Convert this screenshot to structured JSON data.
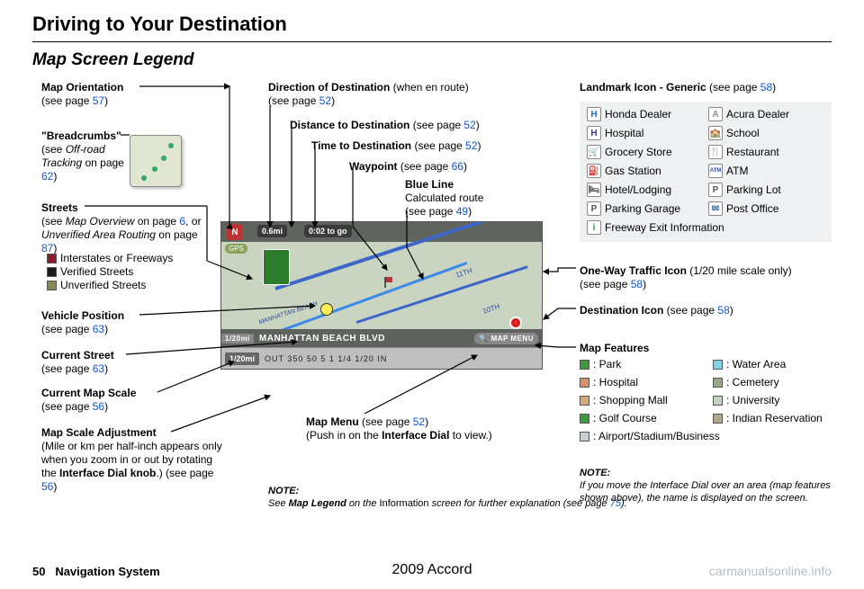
{
  "page": {
    "title": "Driving to Your Destination",
    "section": "Map Screen Legend",
    "page_number": "50",
    "system_label": "Navigation System",
    "vehicle": "2009  Accord",
    "watermark": "carmanualsonline.info"
  },
  "labels": {
    "map_orientation": {
      "title": "Map Orientation",
      "sub": "(see page ",
      "page": "57",
      "tail": ")"
    },
    "breadcrumbs": {
      "title": "\"Breadcrumbs\"",
      "sub1": "(see ",
      "em": "Off-road Tracking",
      "sub2": " on page ",
      "page": "62",
      "tail": ")"
    },
    "streets": {
      "title": "Streets",
      "sub1": "(see ",
      "em1": "Map Overview",
      "sub2": " on page ",
      "p1": "6",
      "sub3": ", or ",
      "em2": "Unverified Area Routing",
      "sub4": " on page ",
      "p2": "87",
      "tail": ")"
    },
    "streets_swatches": [
      {
        "color": "#8a1f2b",
        "label": "Interstates or Freeways"
      },
      {
        "color": "#1b1b1b",
        "label": "Verified Streets"
      },
      {
        "color": "#8a8554",
        "label": "Unverified Streets"
      }
    ],
    "vehicle_position": {
      "title": "Vehicle Position",
      "sub": "(see page ",
      "page": "63",
      "tail": ")"
    },
    "current_street": {
      "title": "Current Street",
      "sub": "(see page ",
      "page": "63",
      "tail": ")"
    },
    "current_scale": {
      "title": "Current Map Scale",
      "sub": "(see page ",
      "page": "56",
      "tail": ")"
    },
    "scale_adj": {
      "title": "Map Scale Adjustment",
      "body": "(Mile or km per half-inch appears only when you zoom in or out by rotating the ",
      "b": "Interface Dial knob",
      "body2": ".) (see page ",
      "page": "56",
      "tail": ")"
    },
    "dir_dest": {
      "title": "Direction of Destination",
      "paren": " (when en route)",
      "sub": "(see page ",
      "page": "52",
      "tail": ")"
    },
    "dist_dest": {
      "title": "Distance to Destination",
      "sub": " (see page ",
      "page": "52",
      "tail": ")"
    },
    "time_dest": {
      "title": "Time to Destination",
      "sub": " (see page ",
      "page": "52",
      "tail": ")"
    },
    "waypoint": {
      "title": "Waypoint",
      "sub": " (see page ",
      "page": "66",
      "tail": ")"
    },
    "blue_line": {
      "title": "Blue Line",
      "body": "Calculated route",
      "sub": "(see page ",
      "page": "49",
      "tail": ")"
    },
    "map_menu": {
      "title": "Map Menu",
      "sub": " (see page ",
      "page": "52",
      "tail": ")",
      "body": "(Push in on the ",
      "b": "Interface Dial",
      "body2": " to view.)"
    },
    "note1": {
      "head": "NOTE:",
      "body1": "See ",
      "b": "Map Legend",
      "body2": " on the ",
      "r": "Information",
      "body3": " screen for further explanation (see page ",
      "page": "75",
      "tail": ")."
    },
    "landmark_header": {
      "title": "Landmark Icon - Generic",
      "sub": " (see page ",
      "page": "58",
      "tail": ")"
    },
    "one_way": {
      "title": "One-Way Traffic Icon",
      "paren": " (1/20 mile scale only)",
      "sub": "(see page ",
      "page": "58",
      "tail": ")"
    },
    "dest_icon": {
      "title": "Destination Icon",
      "sub": " (see page ",
      "page": "58",
      "tail": ")"
    },
    "map_features_title": "Map Features",
    "note2": {
      "head": "NOTE:",
      "body": "If you move the Interface Dial over an area (map features shown above), the name is displayed on the screen."
    }
  },
  "landmarks": [
    {
      "icon": "H",
      "color": "#1f6fd1",
      "label": "Honda Dealer"
    },
    {
      "icon": "A",
      "color": "#8a8a8a",
      "label": "Acura Dealer"
    },
    {
      "icon": "H",
      "color": "#3a3a88",
      "label": "Hospital"
    },
    {
      "icon": "🏫",
      "color": "#caa24a",
      "label": "School"
    },
    {
      "icon": "🛒",
      "color": "#6aa36a",
      "label": "Grocery Store"
    },
    {
      "icon": "🍴",
      "color": "#888888",
      "label": "Restaurant"
    },
    {
      "icon": "⛽",
      "color": "#555555",
      "label": "Gas Station"
    },
    {
      "icon": "ATM",
      "color": "#2c4fb0",
      "label": "ATM"
    },
    {
      "icon": "🛏",
      "color": "#555555",
      "label": "Hotel/Lodging"
    },
    {
      "icon": "P",
      "color": "#555555",
      "label": "Parking Lot"
    },
    {
      "icon": "P",
      "color": "#555555",
      "label": "Parking Garage"
    },
    {
      "icon": "✉",
      "color": "#3a6aa3",
      "label": "Post Office"
    },
    {
      "icon": "i",
      "color": "#3a8a3a",
      "label": "Freeway Exit Information",
      "full": true
    }
  ],
  "map_features": [
    {
      "color": "#3f9a3f",
      "label": ": Park"
    },
    {
      "color": "#7bd6e6",
      "label": ": Water Area"
    },
    {
      "color": "#d68f6a",
      "label": ": Hospital"
    },
    {
      "color": "#9aa68a",
      "label": ": Cemetery"
    },
    {
      "color": "#d6a87a",
      "label": ": Shopping Mall"
    },
    {
      "color": "#c3d4bd",
      "label": ": University"
    },
    {
      "color": "#3f9a3f",
      "label": ": Golf Course"
    },
    {
      "color": "#b0a886",
      "label": ": Indian Reservation"
    },
    {
      "color": "#c9cfd4",
      "label": ": Airport/Stadium/Business",
      "full": true
    }
  ],
  "map": {
    "compass": "N",
    "gps": "GPS",
    "distance": "0.6mi",
    "time_to_go": "0:02 to go",
    "street_banner": "MANHATTAN BEACH BLVD",
    "map_menu_btn": "MAP MENU",
    "scale_badge_small": "1/20mi",
    "scale_badge_large": "1/20mi",
    "scale_ticks": "OUT  350    50     5     1    1/4   1/20  IN",
    "road_labels": [
      "10TH",
      "11TH"
    ]
  }
}
